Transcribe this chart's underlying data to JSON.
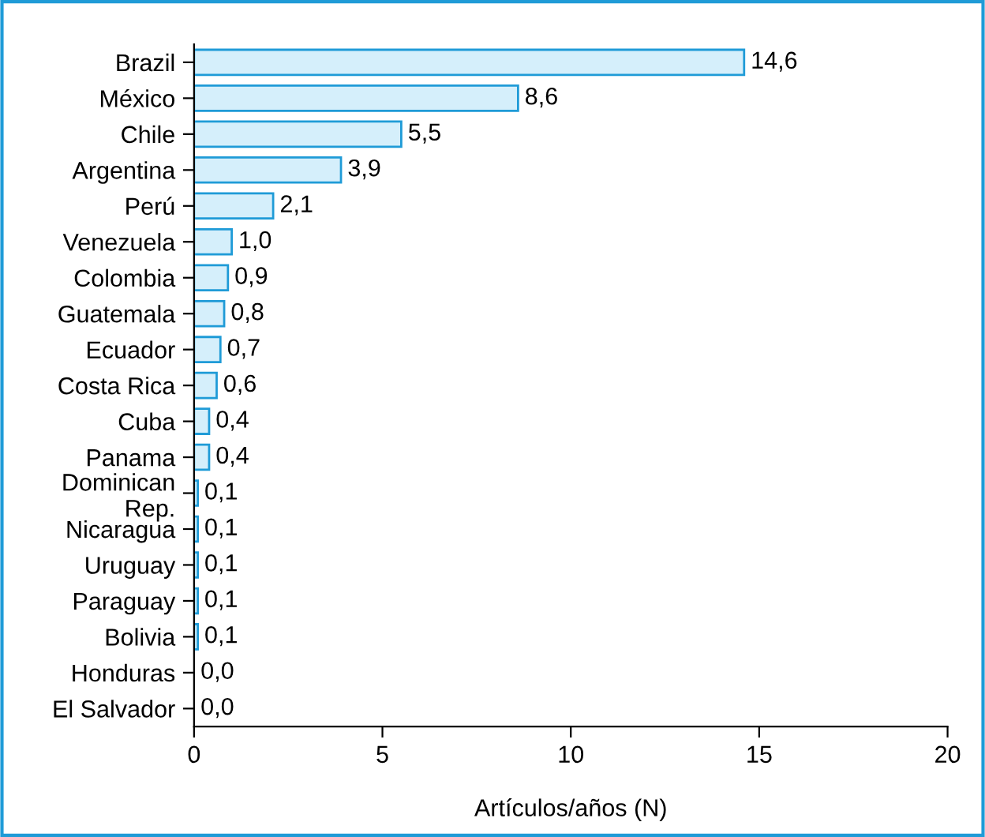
{
  "chart_data": {
    "type": "bar",
    "orientation": "horizontal",
    "xlabel": "Artículos/años (N)",
    "categories": [
      "Brazil",
      "México",
      "Chile",
      "Argentina",
      "Perú",
      "Venezuela",
      "Colombia",
      "Guatemala",
      "Ecuador",
      "Costa Rica",
      "Cuba",
      "Panama",
      "Dominican\nRep.",
      "Nicaragua",
      "Uruguay",
      "Paraguay",
      "Bolivia",
      "Honduras",
      "El Salvador"
    ],
    "values": [
      14.6,
      8.6,
      5.5,
      3.9,
      2.1,
      1.0,
      0.9,
      0.8,
      0.7,
      0.6,
      0.4,
      0.4,
      0.1,
      0.1,
      0.1,
      0.1,
      0.1,
      0.0,
      0.0
    ],
    "value_labels": [
      "14,6",
      "8,6",
      "5,5",
      "3,9",
      "2,1",
      "1,0",
      "0,9",
      "0,8",
      "0,7",
      "0,6",
      "0,4",
      "0,4",
      "0,1",
      "0,1",
      "0,1",
      "0,1",
      "0,1",
      "0,0",
      "0,0"
    ],
    "color": "#d5effb",
    "xlim": [
      0,
      20
    ],
    "xticks": [
      0,
      5,
      10,
      15,
      20
    ],
    "grid": false
  }
}
